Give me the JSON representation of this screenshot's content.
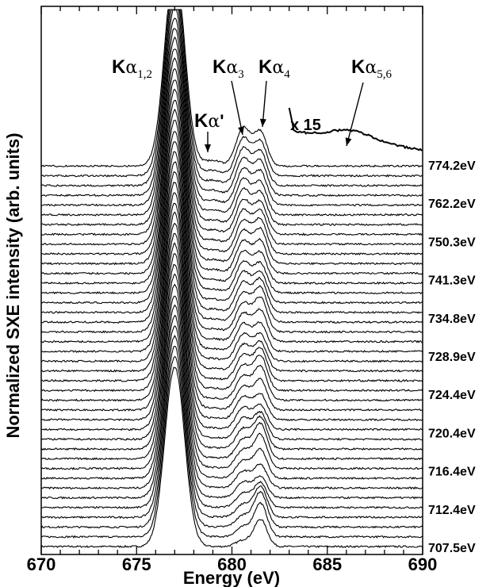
{
  "chart_data": {
    "type": "line",
    "xlabel": "Energy (eV)",
    "ylabel": "Normalized SXE intensity (arb. units)",
    "xlim": [
      670,
      690
    ],
    "xticks": [
      "670",
      "675",
      "680",
      "685",
      "690"
    ],
    "grid": false,
    "legend": "none",
    "series_labels": [
      "707.5eV",
      "712.4eV",
      "716.4eV",
      "720.4eV",
      "724.4eV",
      "728.9eV",
      "734.8eV",
      "741.3eV",
      "750.3eV",
      "762.2eV",
      "774.2eV"
    ],
    "spectrum_count": 40,
    "peaks": {
      "ka12": 677.0,
      "kaprime": 679.0,
      "ka3": 680.6,
      "ka4": 681.5,
      "ka56": 686.3
    },
    "annotations": {
      "ka12": {
        "base": "K",
        "greek": "α",
        "sub": "1,2"
      },
      "ka3": {
        "base": "K",
        "greek": "α",
        "sub": "3"
      },
      "ka4": {
        "base": "K",
        "greek": "α",
        "sub": "4"
      },
      "ka56": {
        "base": "K",
        "greek": "α",
        "sub": "5,6"
      },
      "kaprime": {
        "base": "K",
        "greek": "α",
        "suffix": "'"
      },
      "magnification": "x 15"
    }
  }
}
